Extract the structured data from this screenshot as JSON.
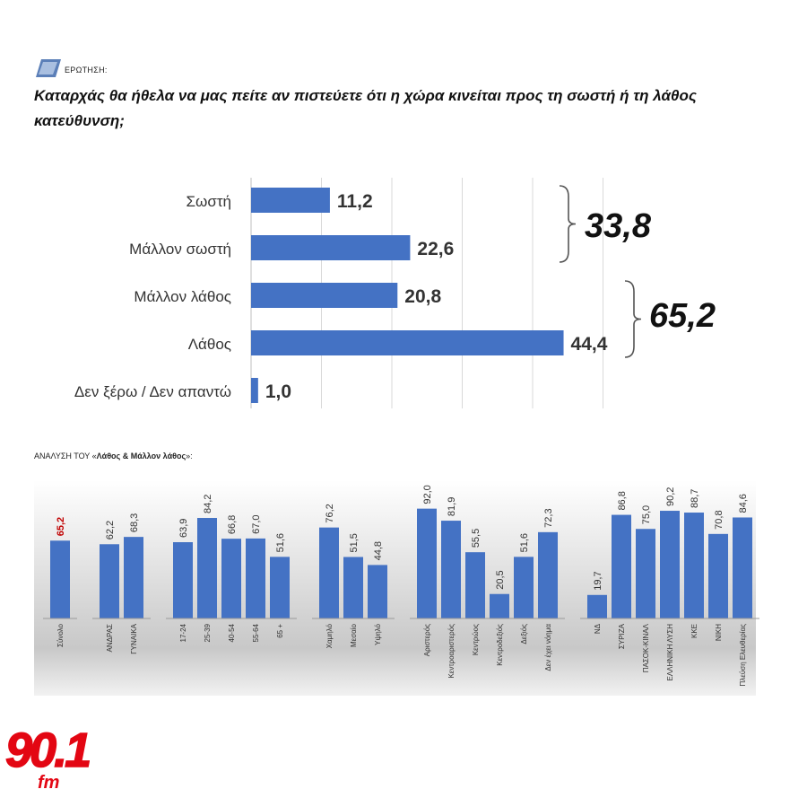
{
  "question": {
    "label": "ΕΡΩΤΗΣΗ:",
    "text": "Καταρχάς θα ήθελα να μας πείτε αν πιστεύετε ότι η χώρα κινείται προς τη σωστή ή τη λάθος κατεύθυνση;"
  },
  "colors": {
    "bar": "#4472c4",
    "highlight": "#c00000",
    "logo": "#e30613"
  },
  "chart_data": [
    {
      "type": "bar",
      "orientation": "horizontal",
      "categories": [
        "Σωστή",
        "Μάλλον σωστή",
        "Μάλλον λάθος",
        "Λάθος",
        "Δεν ξέρω / Δεν απαντώ"
      ],
      "values": [
        11.2,
        22.6,
        20.8,
        44.4,
        1.0
      ],
      "value_labels": [
        "11,2",
        "22,6",
        "20,8",
        "44,4",
        "1,0"
      ],
      "xlim": [
        0,
        50
      ],
      "grid": true,
      "groups": [
        {
          "label": "33,8",
          "from": 0,
          "to": 1
        },
        {
          "label": "65,2",
          "from": 2,
          "to": 3
        }
      ]
    },
    {
      "type": "bar",
      "orientation": "vertical",
      "title_prefix": "ΑΝΑΛΥΣΗ ΤΟΥ «",
      "title_bold": "Λάθος & Μάλλον λάθος",
      "title_suffix": "»:",
      "ylim": [
        0,
        100
      ],
      "groups": [
        {
          "categories": [
            "Σύνολο"
          ],
          "values": [
            65.2
          ],
          "value_labels": [
            "65,2"
          ],
          "highlight": [
            true
          ]
        },
        {
          "categories": [
            "ΑΝΔΡΑΣ",
            "ΓΥΝΑΙΚΑ"
          ],
          "values": [
            62.2,
            68.3
          ],
          "value_labels": [
            "62,2",
            "68,3"
          ]
        },
        {
          "categories": [
            "17-24",
            "25-39",
            "40-54",
            "55-64",
            "65 +"
          ],
          "values": [
            63.9,
            84.2,
            66.8,
            67.0,
            51.6
          ],
          "value_labels": [
            "63,9",
            "84,2",
            "66,8",
            "67,0",
            "51,6"
          ]
        },
        {
          "categories": [
            "Χαμηλό",
            "Μεσαίο",
            "Υψηλό"
          ],
          "values": [
            76.2,
            51.5,
            44.8
          ],
          "value_labels": [
            "76,2",
            "51,5",
            "44,8"
          ]
        },
        {
          "categories": [
            "Αριστερός",
            "Κεντροαριστερός",
            "Κεντρώος",
            "Κεντροδεξιός",
            "Δεξιός",
            "Δεν έχει νόημα"
          ],
          "values": [
            92.0,
            81.9,
            55.5,
            20.5,
            51.6,
            72.3
          ],
          "value_labels": [
            "92,0",
            "81,9",
            "55,5",
            "20,5",
            "51,6",
            "72,3"
          ]
        },
        {
          "categories": [
            "ΝΔ",
            "ΣΥΡΙΖΑ",
            "ΠΑΣΟΚ-ΚΙΝΑΛ",
            "ΕΛΛΗΝΙΚΗ ΛΥΣΗ",
            "ΚΚΕ",
            "ΝΙΚΗ",
            "Πλεύση Ελευθερίας"
          ],
          "values": [
            19.7,
            86.8,
            75.0,
            90.2,
            88.7,
            70.8,
            84.6
          ],
          "value_labels": [
            "19,7",
            "86,8",
            "75,0",
            "90,2",
            "88,7",
            "70,8",
            "84,6"
          ]
        }
      ]
    }
  ],
  "logo": {
    "number": "90.1",
    "suffix": "fm"
  }
}
